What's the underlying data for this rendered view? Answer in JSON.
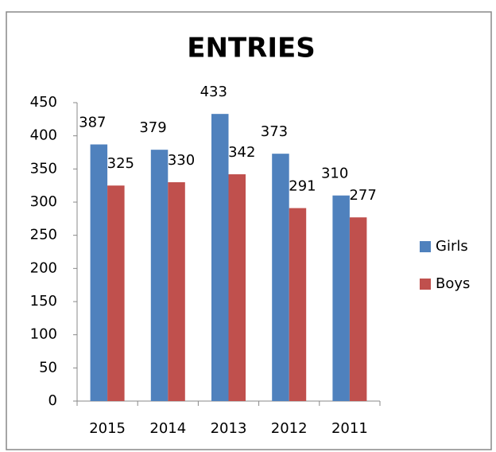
{
  "chart_data": {
    "type": "bar",
    "title": "ENTRIES",
    "categories": [
      "2015",
      "2014",
      "2013",
      "2012",
      "2011"
    ],
    "series": [
      {
        "name": "Girls",
        "color": "#4f81bd",
        "values": [
          387,
          379,
          433,
          373,
          310
        ]
      },
      {
        "name": "Boys",
        "color": "#c0504d",
        "values": [
          325,
          330,
          342,
          291,
          277
        ]
      }
    ],
    "ylim": [
      0,
      450
    ],
    "yticks": [
      0,
      50,
      100,
      150,
      200,
      250,
      300,
      350,
      400,
      450
    ],
    "grid": false,
    "legend": "right"
  }
}
